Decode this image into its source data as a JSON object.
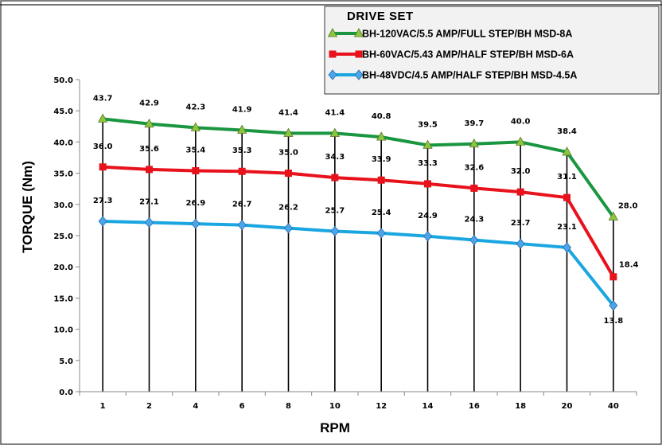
{
  "chart_data": {
    "type": "line",
    "title": "",
    "xlabel": "RPM",
    "ylabel": "TORQUE (Nm)",
    "ylim": [
      0,
      50
    ],
    "yticks": [
      "0.0",
      "5.0",
      "10.0",
      "15.0",
      "20.0",
      "25.0",
      "30.0",
      "35.0",
      "40.0",
      "45.0",
      "50.0"
    ],
    "categories": [
      "1",
      "2",
      "4",
      "6",
      "8",
      "10",
      "12",
      "14",
      "16",
      "18",
      "20",
      "40"
    ],
    "legend_title": "DRIVE SET",
    "legend_position": "top-right",
    "grid": false,
    "series": [
      {
        "name": "BH-120VAC/5.5 AMP/FULL STEP/BH MSD-8A",
        "color": "#1a9641",
        "marker": "triangle",
        "values": [
          43.7,
          42.9,
          42.3,
          41.9,
          41.4,
          41.4,
          40.8,
          39.5,
          39.7,
          40.0,
          38.4,
          28.0
        ],
        "labels": [
          "43.7",
          "42.9",
          "42.3",
          "41.9",
          "41.4",
          "41.4",
          "40.8",
          "39.5",
          "39.7",
          "40.0",
          "38.4",
          "28.0"
        ]
      },
      {
        "name": "BH-60VAC/5.43 AMP/HALF STEP/BH MSD-6A",
        "color": "#e8121c",
        "marker": "square",
        "values": [
          36.0,
          35.6,
          35.4,
          35.3,
          35.0,
          34.3,
          33.9,
          33.3,
          32.6,
          32.0,
          31.1,
          18.4
        ],
        "labels": [
          "36.0",
          "35.6",
          "35.4",
          "35.3",
          "35.0",
          "34.3",
          "33.9",
          "33.3",
          "32.6",
          "32.0",
          "31.1",
          "18.4"
        ]
      },
      {
        "name": "BH-48VDC/4.5 AMP/HALF STEP/BH MSD-4.5A",
        "color": "#1aa6e0",
        "marker": "diamond",
        "values": [
          27.3,
          27.1,
          26.9,
          26.7,
          26.2,
          25.7,
          25.4,
          24.9,
          24.3,
          23.7,
          23.1,
          13.8
        ],
        "labels": [
          "27.3",
          "27.1",
          "26.9",
          "26.7",
          "26.2",
          "25.7",
          "25.4",
          "24.9",
          "24.3",
          "23.7",
          "23.1",
          "13.8"
        ]
      }
    ]
  }
}
